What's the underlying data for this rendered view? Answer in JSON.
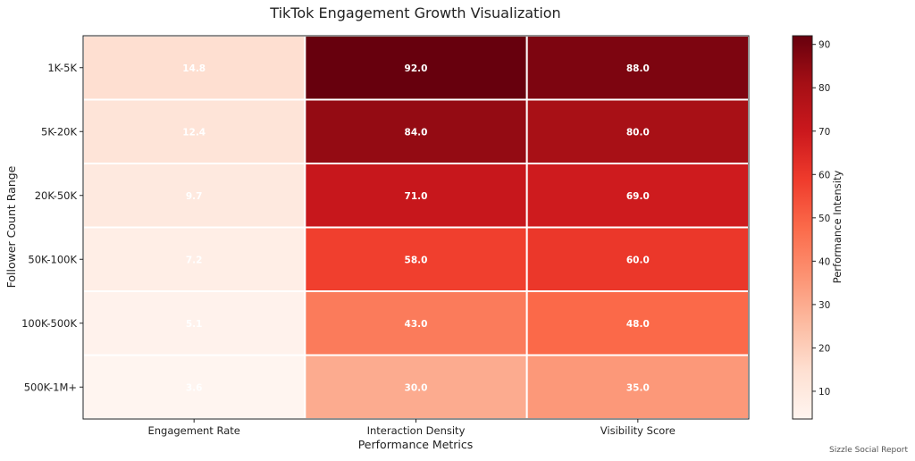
{
  "chart_data": {
    "type": "heatmap",
    "title": "TikTok Engagement Growth Visualization",
    "xlabel": "Performance Metrics",
    "ylabel": "Follower Count Range",
    "x_categories": [
      "Engagement Rate",
      "Interaction Density",
      "Visibility Score"
    ],
    "y_categories": [
      "1K-5K",
      "5K-20K",
      "20K-50K",
      "50K-100K",
      "100K-500K",
      "500K-1M+"
    ],
    "values": [
      [
        14.8,
        92.0,
        88.0
      ],
      [
        12.4,
        84.0,
        80.0
      ],
      [
        9.7,
        71.0,
        69.0
      ],
      [
        7.2,
        58.0,
        60.0
      ],
      [
        5.1,
        43.0,
        48.0
      ],
      [
        3.6,
        30.0,
        35.0
      ]
    ],
    "colorbar": {
      "label": "Performance Intensity",
      "colormap": "Reds",
      "range": [
        3.6,
        92.0
      ],
      "ticks": [
        10,
        20,
        30,
        40,
        50,
        60,
        70,
        80,
        90
      ]
    },
    "footer": "Sizzle Social Report"
  }
}
